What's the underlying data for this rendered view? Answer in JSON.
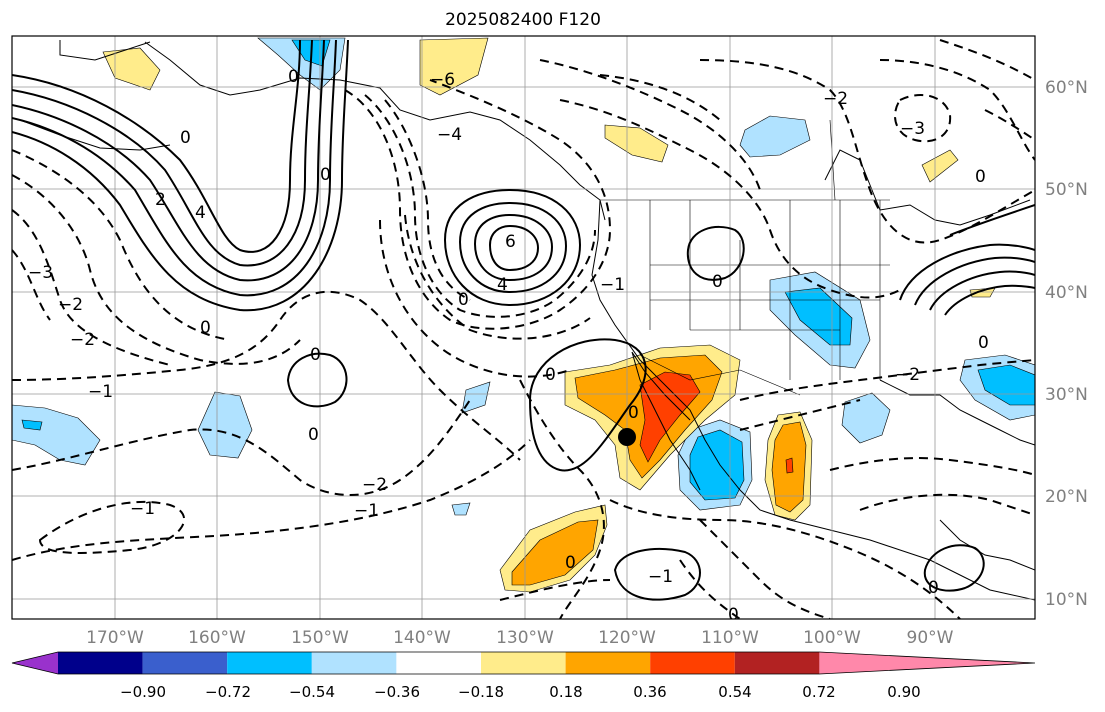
{
  "title": "2025082400 F120",
  "lon_labels": [
    "170°W",
    "160°W",
    "150°W",
    "140°W",
    "130°W",
    "120°W",
    "110°W",
    "100°W",
    "90°W"
  ],
  "lat_labels": [
    "60°N",
    "50°N",
    "40°N",
    "30°N",
    "20°N",
    "10°N"
  ],
  "colorbar": {
    "ticks": [
      "−0.90",
      "−0.72",
      "−0.54",
      "−0.36",
      "−0.18",
      "0.18",
      "0.36",
      "0.54",
      "0.72",
      "0.90"
    ],
    "colors": [
      "#9932CC",
      "#00008B",
      "#3A5FCD",
      "#00BFFF",
      "#B0E2FF",
      "#FFFFFF",
      "#FFEC8B",
      "#FFA500",
      "#FF4000",
      "#B22222",
      "#FF88AA"
    ]
  },
  "contour_labels": [
    "6",
    "4",
    "2",
    "0",
    "−1",
    "−2",
    "−3",
    "−4",
    "−6"
  ],
  "marker": {
    "lat": 25.8,
    "lon": -120.3
  }
}
